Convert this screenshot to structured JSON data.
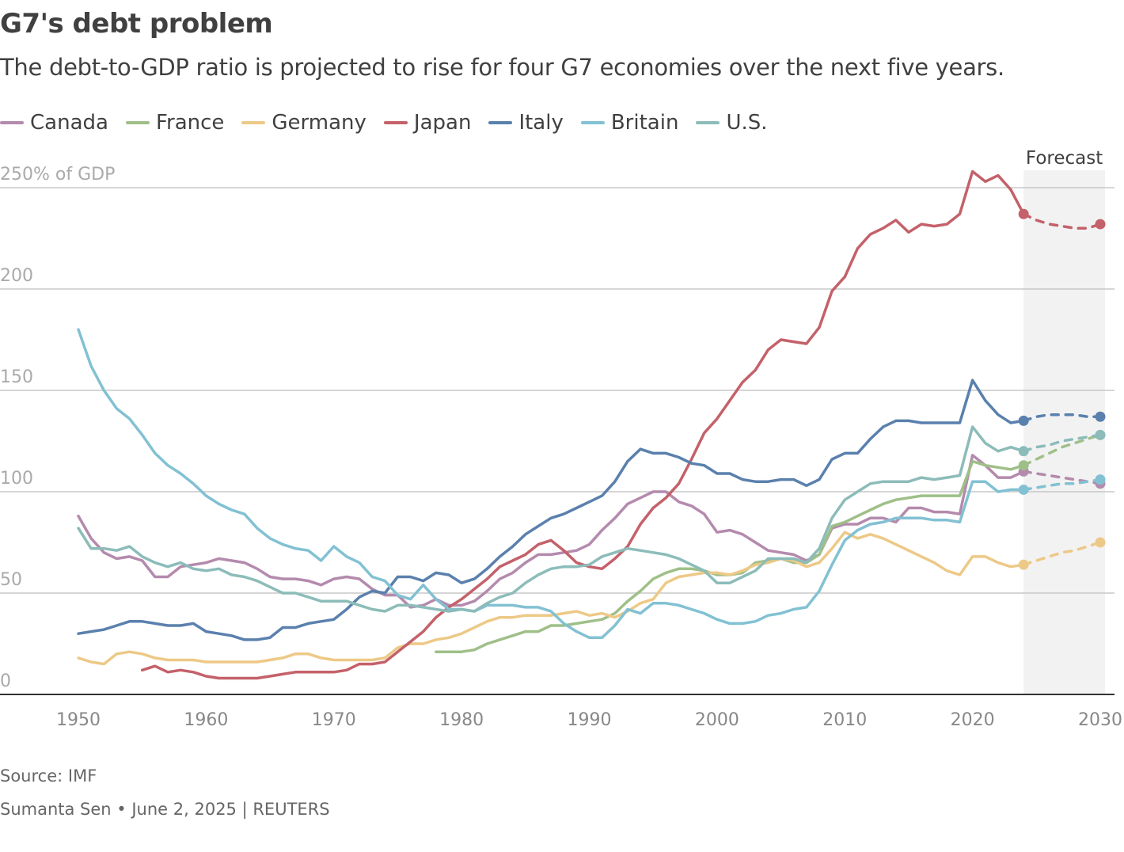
{
  "title": "G7's debt problem",
  "subtitle": "The debt-to-GDP ratio is projected to rise for four G7 economies over the next five years.",
  "source": "Source: IMF",
  "credit": "Sumanta Sen • June 2, 2025 | REUTERS",
  "chart_data": {
    "type": "line",
    "ylabel": "",
    "y_unit_label": "250% of GDP",
    "ylim": [
      0,
      250
    ],
    "xlim": [
      1950,
      2030
    ],
    "yticks": [
      0,
      50,
      100,
      150,
      200,
      250
    ],
    "ytick_labels": [
      "0",
      "50",
      "100",
      "150",
      "200",
      "250% of GDP"
    ],
    "xticks": [
      1950,
      1960,
      1970,
      1980,
      1990,
      2000,
      2010,
      2020,
      2030
    ],
    "xtick_labels": [
      "1950",
      "1960",
      "1970",
      "1980",
      "1990",
      "2000",
      "2010",
      "2020",
      "2030"
    ],
    "grid": true,
    "legend_position": "top",
    "forecast_label": "Forecast",
    "forecast_range": [
      2024,
      2030
    ],
    "series": [
      {
        "name": "Canada",
        "color": "#b48aad",
        "start": 1950,
        "values": [
          88,
          77,
          70,
          67,
          68,
          66,
          58,
          58,
          63,
          64,
          65,
          67,
          66,
          65,
          62,
          58,
          57,
          57,
          56,
          54,
          57,
          58,
          57,
          52,
          49,
          49,
          43,
          44,
          47,
          44,
          44,
          46,
          51,
          57,
          60,
          65,
          69,
          69,
          70,
          71,
          74,
          81,
          87,
          94,
          97,
          100,
          100,
          95,
          93,
          89,
          80,
          81,
          79,
          75,
          71,
          70,
          69,
          66,
          69,
          82,
          84,
          84,
          87,
          87,
          85,
          92,
          92,
          90,
          90,
          89,
          118,
          113,
          107,
          107,
          110
        ],
        "forecast": [
          110,
          109,
          108,
          107,
          106,
          105,
          104
        ]
      },
      {
        "name": "France",
        "color": "#9fbf88",
        "start": 1978,
        "values": [
          21,
          21,
          21,
          22,
          25,
          27,
          29,
          31,
          31,
          34,
          34,
          35,
          36,
          37,
          40,
          46,
          51,
          57,
          60,
          62,
          62,
          61,
          59,
          59,
          60,
          65,
          66,
          67,
          65,
          65,
          69,
          83,
          85,
          88,
          91,
          94,
          96,
          97,
          98,
          98,
          98,
          98,
          115,
          113,
          112,
          111,
          113
        ],
        "forecast": [
          113,
          116,
          119,
          122,
          124,
          126,
          128
        ]
      },
      {
        "name": "Germany",
        "color": "#edc987",
        "start": 1950,
        "values": [
          18,
          16,
          15,
          20,
          21,
          20,
          18,
          17,
          17,
          17,
          16,
          16,
          16,
          16,
          16,
          17,
          18,
          20,
          20,
          18,
          17,
          17,
          17,
          17,
          18,
          23,
          25,
          25,
          27,
          28,
          30,
          33,
          36,
          38,
          38,
          39,
          39,
          39,
          40,
          41,
          39,
          40,
          38,
          41,
          45,
          47,
          55,
          58,
          59,
          60,
          60,
          59,
          61,
          64,
          65,
          67,
          66,
          63,
          65,
          72,
          80,
          77,
          79,
          77,
          74,
          71,
          68,
          65,
          61,
          59,
          68,
          68,
          65,
          63,
          64
        ],
        "forecast": [
          64,
          66,
          68,
          70,
          71,
          73,
          75
        ]
      },
      {
        "name": "Japan",
        "color": "#c4616a",
        "start": 1955,
        "values": [
          12,
          14,
          11,
          12,
          11,
          9,
          8,
          8,
          8,
          8,
          9,
          10,
          11,
          11,
          11,
          11,
          12,
          15,
          15,
          16,
          21,
          26,
          31,
          38,
          43,
          47,
          52,
          57,
          63,
          66,
          69,
          74,
          76,
          71,
          65,
          63,
          62,
          67,
          73,
          84,
          92,
          97,
          104,
          116,
          129,
          136,
          145,
          154,
          160,
          170,
          175,
          174,
          173,
          181,
          199,
          206,
          220,
          227,
          230,
          234,
          228,
          232,
          231,
          232,
          237,
          258,
          253,
          256,
          249,
          237
        ],
        "forecast": [
          237,
          234,
          232,
          231,
          230,
          230,
          232
        ]
      },
      {
        "name": "Italy",
        "color": "#5a80ad",
        "start": 1950,
        "values": [
          30,
          31,
          32,
          34,
          36,
          36,
          35,
          34,
          34,
          35,
          31,
          30,
          29,
          27,
          27,
          28,
          33,
          33,
          35,
          36,
          37,
          42,
          48,
          51,
          50,
          58,
          58,
          56,
          60,
          59,
          55,
          57,
          62,
          68,
          73,
          79,
          83,
          87,
          89,
          92,
          95,
          98,
          105,
          115,
          121,
          119,
          119,
          117,
          114,
          113,
          109,
          109,
          106,
          105,
          105,
          106,
          106,
          103,
          106,
          116,
          119,
          119,
          126,
          132,
          135,
          135,
          134,
          134,
          134,
          134,
          155,
          145,
          138,
          134,
          135
        ],
        "forecast": [
          135,
          137,
          138,
          138,
          138,
          137,
          137
        ]
      },
      {
        "name": "Britain",
        "color": "#82c1d3",
        "start": 1950,
        "values": [
          180,
          162,
          150,
          141,
          136,
          128,
          119,
          113,
          109,
          104,
          98,
          94,
          91,
          89,
          82,
          77,
          74,
          72,
          71,
          66,
          73,
          68,
          65,
          58,
          56,
          49,
          47,
          54,
          47,
          42,
          42,
          41,
          44,
          44,
          44,
          43,
          43,
          41,
          35,
          31,
          28,
          28,
          34,
          42,
          40,
          45,
          45,
          44,
          42,
          40,
          37,
          35,
          35,
          36,
          39,
          40,
          42,
          43,
          51,
          64,
          76,
          81,
          84,
          85,
          87,
          87,
          87,
          86,
          86,
          85,
          105,
          105,
          100,
          101,
          101
        ],
        "forecast": [
          101,
          102,
          103,
          104,
          104,
          105,
          106
        ]
      },
      {
        "name": "U.S.",
        "color": "#8cbcb9",
        "start": 1950,
        "values": [
          82,
          72,
          72,
          71,
          73,
          68,
          65,
          63,
          65,
          62,
          61,
          62,
          59,
          58,
          56,
          53,
          50,
          50,
          48,
          46,
          46,
          46,
          44,
          42,
          41,
          44,
          44,
          43,
          42,
          41,
          42,
          41,
          45,
          48,
          50,
          55,
          59,
          62,
          63,
          63,
          64,
          68,
          70,
          72,
          71,
          70,
          69,
          67,
          64,
          61,
          55,
          55,
          58,
          61,
          67,
          67,
          67,
          65,
          72,
          87,
          96,
          100,
          104,
          105,
          105,
          105,
          107,
          106,
          107,
          108,
          132,
          124,
          120,
          122,
          120
        ],
        "forecast": [
          120,
          122,
          123,
          125,
          126,
          127,
          128
        ]
      }
    ]
  }
}
